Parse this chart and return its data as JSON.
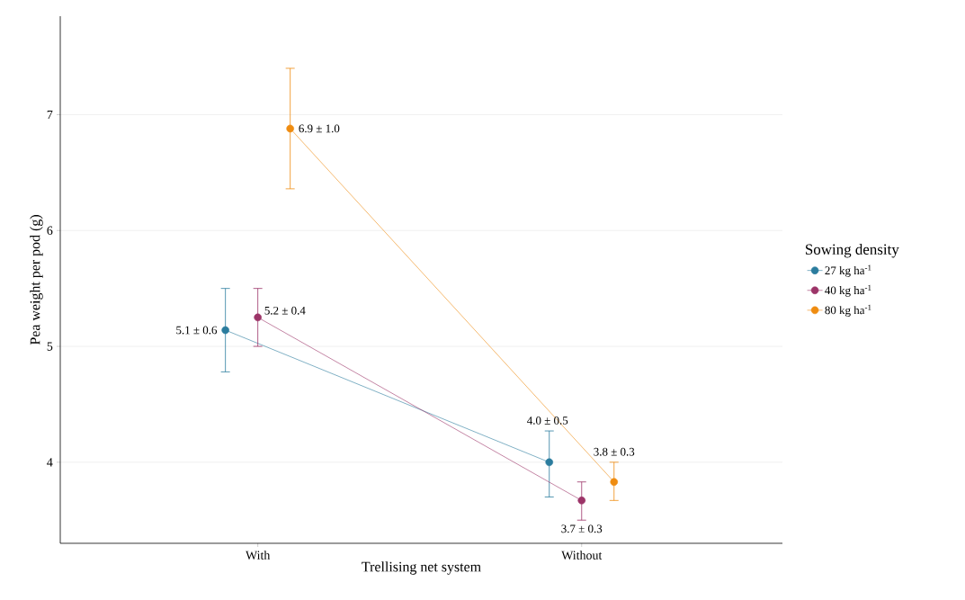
{
  "chart_data": {
    "type": "line",
    "xlabel": "Trellising net system",
    "ylabel": "Pea weight per pod (g)",
    "legend_title": "Sowing density",
    "categories": [
      "With",
      "Without"
    ],
    "series": [
      {
        "name": "27 kg ha$^{-1}$",
        "color": "#2b7c9e",
        "values": [
          5.14,
          4.0
        ],
        "errors": [
          [
            4.78,
            5.5
          ],
          [
            3.7,
            4.27
          ]
        ],
        "value_labels": [
          "5.1 ± 0.6",
          "4.0 ± 0.5"
        ]
      },
      {
        "name": "40 kg ha$^{-1}$",
        "color": "#9c3468",
        "values": [
          5.25,
          3.67
        ],
        "errors": [
          [
            5.0,
            5.5
          ],
          [
            3.5,
            3.83
          ]
        ],
        "value_labels": [
          "5.2 ± 0.4",
          "3.7 ± 0.3"
        ]
      },
      {
        "name": "80 kg ha$^{-1}$",
        "color": "#ef8c10",
        "values": [
          6.88,
          3.83
        ],
        "errors": [
          [
            6.36,
            7.4
          ],
          [
            3.67,
            4.0
          ]
        ],
        "value_labels": [
          "6.9 ± 1.0",
          "3.8 ± 0.3"
        ]
      }
    ],
    "ylim": [
      3.3,
      7.85
    ],
    "yticks": [
      4,
      5,
      6,
      7
    ],
    "grid": "y",
    "legend": "right",
    "marker": "circle",
    "line_style": "solid"
  }
}
